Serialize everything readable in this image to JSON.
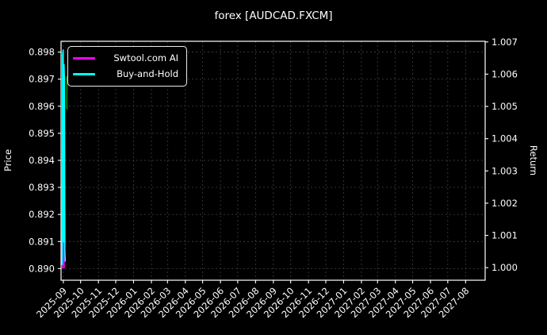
{
  "title": "forex [AUDCAD.FXCM]",
  "colors": {
    "background": "#000000",
    "text": "#ffffff",
    "grid": "#3a3a3a",
    "axis_spine": "#ffffff",
    "ai_line": "#ff00ff",
    "buyhold_line": "#00ffff",
    "price_line": "#0a8a0a"
  },
  "legend": {
    "items": [
      {
        "label": "Swtool.com AI",
        "color": "#ff00ff"
      },
      {
        "label": "Buy-and-Hold",
        "color": "#00ffff"
      }
    ]
  },
  "chart_data": {
    "type": "line",
    "title": "forex [AUDCAD.FXCM]",
    "grid": true,
    "legend_position": "upper left",
    "x_axis": {
      "tick_labels": [
        "2025-09",
        "2025-10",
        "2025-11",
        "2025-12",
        "2026-01",
        "2026-02",
        "2026-03",
        "2026-04",
        "2026-05",
        "2026-06",
        "2026-07",
        "2026-08",
        "2026-09",
        "2026-10",
        "2026-11",
        "2026-12",
        "2027-01",
        "2027-02",
        "2027-03",
        "2027-04",
        "2027-05",
        "2027-06",
        "2027-07",
        "2027-08"
      ],
      "tick_days": [
        0,
        30,
        61,
        91,
        122,
        153,
        181,
        212,
        242,
        273,
        303,
        334,
        365,
        395,
        426,
        456,
        487,
        518,
        546,
        577,
        607,
        638,
        668,
        699
      ],
      "range_days": [
        -4,
        733
      ]
    },
    "left_axis": {
      "label": "Price",
      "tick_labels": [
        "0.890",
        "0.891",
        "0.892",
        "0.893",
        "0.894",
        "0.895",
        "0.896",
        "0.897",
        "0.898"
      ],
      "tick_values": [
        0.89,
        0.891,
        0.892,
        0.893,
        0.894,
        0.895,
        0.896,
        0.897,
        0.898
      ],
      "range": [
        0.88957,
        0.8984
      ]
    },
    "right_axis": {
      "label": "Return",
      "tick_labels": [
        "1.000",
        "1.001",
        "1.002",
        "1.003",
        "1.004",
        "1.005",
        "1.006",
        "1.007"
      ],
      "tick_values": [
        1.0,
        1.001,
        1.002,
        1.003,
        1.004,
        1.005,
        1.006,
        1.007
      ],
      "range": [
        0.99961,
        1.00702
      ]
    },
    "series": [
      {
        "name": "AUDCAD price",
        "axis": "left",
        "color": "#0a8a0a",
        "in_legend": false,
        "points": [
          [
            6.0,
            0.8971
          ],
          [
            6.3,
            0.8967
          ],
          [
            6.1,
            0.8962
          ],
          [
            6.4,
            0.8959
          ]
        ]
      },
      {
        "name": "Swtool.com AI",
        "axis": "right",
        "color": "#ff00ff",
        "in_legend": true,
        "points": [
          [
            -1.5,
            1.0
          ],
          [
            -0.7,
            1.0009
          ],
          [
            0.2,
            1.0001
          ],
          [
            0.8,
            1.001
          ],
          [
            1.4,
            1.0
          ]
        ]
      },
      {
        "name": "Buy-and-Hold",
        "axis": "right",
        "color": "#00ffff",
        "in_legend": true,
        "points": [
          [
            -2.1,
            1.0001
          ],
          [
            -1.2,
            1.0066
          ],
          [
            -0.3,
            1.00675
          ],
          [
            0.4,
            1.0008
          ],
          [
            1.1,
            1.0063
          ],
          [
            1.9,
            1.0058
          ],
          [
            2.6,
            1.0005
          ],
          [
            3.3,
            1.0002
          ]
        ]
      }
    ]
  }
}
